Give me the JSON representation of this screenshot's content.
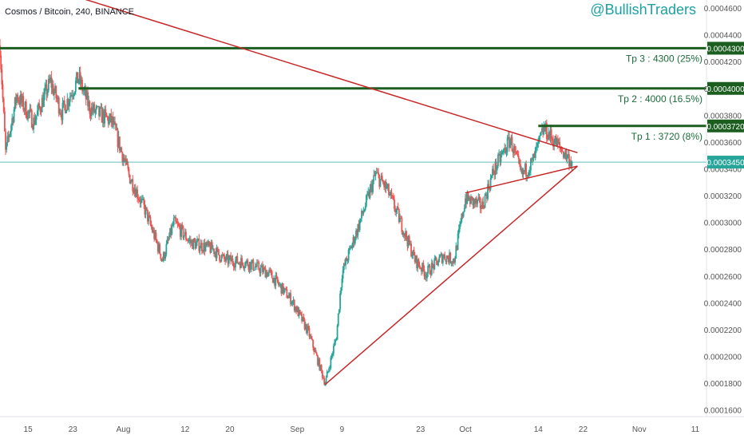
{
  "header": {
    "symbol": "Cosmos / Bitcoin, 240, BINANCE",
    "watermark": "@BullishTraders"
  },
  "colors": {
    "up": "#26a69a",
    "down": "#ef5350",
    "trendline": "#c62828",
    "target_line": "#1b5e20",
    "target_text": "#1b6b3a",
    "price_line": "#26a69a",
    "axis_text": "#555555",
    "watermark": "#1ea0a0"
  },
  "chart_data": {
    "type": "candlestick",
    "title": "Cosmos / Bitcoin, 240, BINANCE",
    "ylim": [
      0.000155,
      0.000466
    ],
    "y_ticks": [
      "0.0001600",
      "0.0001800",
      "0.0002000",
      "0.0002200",
      "0.0002400",
      "0.0002600",
      "0.0002800",
      "0.0003000",
      "0.0003200",
      "0.0003400",
      "0.0003600",
      "0.0003800",
      "0.0004000",
      "0.0004200",
      "0.0004400",
      "0.0004600"
    ],
    "x_ticks": [
      {
        "label": "15",
        "date": "2020-07-15"
      },
      {
        "label": "23",
        "date": "2020-07-23"
      },
      {
        "label": "Aug",
        "date": "2020-08-01"
      },
      {
        "label": "12",
        "date": "2020-08-12"
      },
      {
        "label": "20",
        "date": "2020-08-20"
      },
      {
        "label": "Sep",
        "date": "2020-09-01"
      },
      {
        "label": "9",
        "date": "2020-09-09"
      },
      {
        "label": "23",
        "date": "2020-09-23"
      },
      {
        "label": "Oct",
        "date": "2020-10-01"
      },
      {
        "label": "14",
        "date": "2020-10-14"
      },
      {
        "label": "22",
        "date": "2020-10-22"
      },
      {
        "label": "Nov",
        "date": "2020-11-01"
      },
      {
        "label": "11",
        "date": "2020-11-11"
      }
    ],
    "xlim": [
      "2020-07-10",
      "2020-11-13"
    ],
    "price_anchors": [
      {
        "date": "2020-07-10",
        "price": 0.000432
      },
      {
        "date": "2020-07-11",
        "price": 0.000352
      },
      {
        "date": "2020-07-13",
        "price": 0.000395
      },
      {
        "date": "2020-07-16",
        "price": 0.000375
      },
      {
        "date": "2020-07-19",
        "price": 0.000405
      },
      {
        "date": "2020-07-21",
        "price": 0.000382
      },
      {
        "date": "2020-07-24",
        "price": 0.000408
      },
      {
        "date": "2020-07-26",
        "price": 0.000385
      },
      {
        "date": "2020-07-30",
        "price": 0.000375
      },
      {
        "date": "2020-08-02",
        "price": 0.000335
      },
      {
        "date": "2020-08-05",
        "price": 0.000308
      },
      {
        "date": "2020-08-08",
        "price": 0.000272
      },
      {
        "date": "2020-08-10",
        "price": 0.0003
      },
      {
        "date": "2020-08-13",
        "price": 0.000285
      },
      {
        "date": "2020-08-17",
        "price": 0.00028
      },
      {
        "date": "2020-08-19",
        "price": 0.000272
      },
      {
        "date": "2020-08-23",
        "price": 0.00027
      },
      {
        "date": "2020-08-27",
        "price": 0.000262
      },
      {
        "date": "2020-08-31",
        "price": 0.000242
      },
      {
        "date": "2020-09-03",
        "price": 0.000218
      },
      {
        "date": "2020-09-06",
        "price": 0.00018
      },
      {
        "date": "2020-09-08",
        "price": 0.000215
      },
      {
        "date": "2020-09-09",
        "price": 0.000262
      },
      {
        "date": "2020-09-12",
        "price": 0.000298
      },
      {
        "date": "2020-09-15",
        "price": 0.000336
      },
      {
        "date": "2020-09-17",
        "price": 0.000325
      },
      {
        "date": "2020-09-19",
        "price": 0.000305
      },
      {
        "date": "2020-09-22",
        "price": 0.000272
      },
      {
        "date": "2020-09-24",
        "price": 0.000262
      },
      {
        "date": "2020-09-27",
        "price": 0.000275
      },
      {
        "date": "2020-09-29",
        "price": 0.000272
      },
      {
        "date": "2020-10-01",
        "price": 0.000318
      },
      {
        "date": "2020-10-04",
        "price": 0.000312
      },
      {
        "date": "2020-10-06",
        "price": 0.000338
      },
      {
        "date": "2020-10-09",
        "price": 0.000362
      },
      {
        "date": "2020-10-11",
        "price": 0.000335
      },
      {
        "date": "2020-10-13",
        "price": 0.000345
      },
      {
        "date": "2020-10-15",
        "price": 0.00037
      },
      {
        "date": "2020-10-17",
        "price": 0.00036
      },
      {
        "date": "2020-10-20",
        "price": 0.000345
      }
    ],
    "horizontal_levels": [
      {
        "price": 0.00043,
        "label": "0.0004300",
        "target_text": "Tp 3 : 4300 (25%)"
      },
      {
        "price": 0.0004,
        "label": "0.0004000",
        "target_text": "Tp 2 : 4000 (16.5%)"
      },
      {
        "price": 0.000372,
        "label": "0.0003720",
        "target_text": "Tp 1 : 3720 (8%)"
      }
    ],
    "current_price": {
      "price": 0.000345,
      "label": "0.0003450"
    },
    "trendlines": [
      {
        "from": {
          "date": "2020-07-24",
          "price": 0.000468
        },
        "to": {
          "date": "2020-10-21",
          "price": 0.000352
        }
      },
      {
        "from": {
          "date": "2020-09-06",
          "price": 0.000179
        },
        "to": {
          "date": "2020-10-21",
          "price": 0.000342
        }
      },
      {
        "from": {
          "date": "2020-10-01",
          "price": 0.000322
        },
        "to": {
          "date": "2020-10-21",
          "price": 0.000342
        }
      }
    ]
  }
}
